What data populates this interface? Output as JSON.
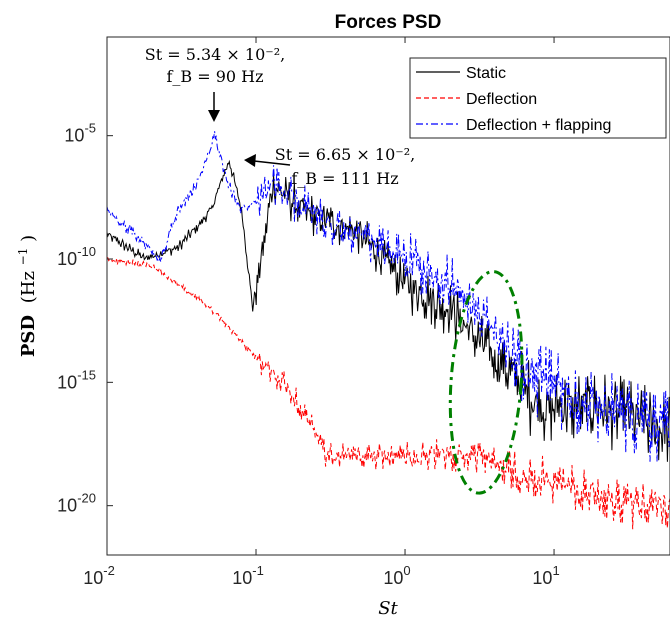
{
  "chart_data": {
    "type": "line",
    "title": "Forces PSD",
    "xlabel": "St",
    "ylabel": "PSD (Hz⁻¹)",
    "ylabel_main": "PSD",
    "ylabel_unit": "(Hz",
    "ylabel_unit_exp": "−1",
    "ylabel_unit_close": ")",
    "xscale": "log",
    "yscale": "log",
    "xlim": [
      0.01,
      60
    ],
    "ylim": [
      1e-22,
      0.1
    ],
    "grid": false,
    "legend_placement": "top-right",
    "x_ticks": [
      {
        "base": "10",
        "exp": "-2",
        "value": 0.01
      },
      {
        "base": "10",
        "exp": "-1",
        "value": 0.1
      },
      {
        "base": "10",
        "exp": "0",
        "value": 1
      },
      {
        "base": "10",
        "exp": "1",
        "value": 10
      }
    ],
    "y_ticks": [
      {
        "base": "10",
        "exp": "-5",
        "value": 1e-05
      },
      {
        "base": "10",
        "exp": "-10",
        "value": 1e-10
      },
      {
        "base": "10",
        "exp": "-15",
        "value": 1e-15
      },
      {
        "base": "10",
        "exp": "-20",
        "value": 1e-20
      }
    ],
    "series": [
      {
        "name": "Static",
        "color": "#000000",
        "style": "solid",
        "points": [
          [
            0.01,
            1e-09
          ],
          [
            0.018,
            1e-10
          ],
          [
            0.03,
            3e-10
          ],
          [
            0.04,
            2e-09
          ],
          [
            0.05,
            1e-08
          ],
          [
            0.066,
            1e-06
          ],
          [
            0.08,
            1e-08
          ],
          [
            0.095,
            1e-12
          ],
          [
            0.13,
            1e-07
          ],
          [
            0.2,
            1e-08
          ],
          [
            0.5,
            1e-09
          ],
          [
            1,
            1e-11
          ],
          [
            2,
            1e-12
          ],
          [
            4,
            1e-14
          ],
          [
            8,
            1e-16
          ],
          [
            20,
            1e-16
          ],
          [
            60,
            1e-17
          ]
        ]
      },
      {
        "name": "Deflection",
        "color": "#ff0000",
        "style": "dashed",
        "points": [
          [
            0.01,
            1e-10
          ],
          [
            0.02,
            5e-11
          ],
          [
            0.05,
            1e-12
          ],
          [
            0.1,
            1e-14
          ],
          [
            0.15,
            1e-15
          ],
          [
            0.2,
            1e-16
          ],
          [
            0.3,
            1e-18
          ],
          [
            1,
            1e-18
          ],
          [
            3,
            1e-18
          ],
          [
            5,
            3e-19
          ],
          [
            10,
            1e-19
          ],
          [
            30,
            1e-20
          ],
          [
            60,
            1e-20
          ]
        ]
      },
      {
        "name": "Deflection + flapping",
        "color": "#0000ff",
        "style": "dash-dot",
        "points": [
          [
            0.01,
            1e-08
          ],
          [
            0.023,
            1e-10
          ],
          [
            0.03,
            1e-08
          ],
          [
            0.04,
            1e-07
          ],
          [
            0.053,
            1e-05
          ],
          [
            0.065,
            1e-07
          ],
          [
            0.08,
            1e-08
          ],
          [
            0.13,
            1e-07
          ],
          [
            0.3,
            3e-09
          ],
          [
            1,
            1e-10
          ],
          [
            2,
            1e-11
          ],
          [
            4,
            1e-13
          ],
          [
            8,
            1e-15
          ],
          [
            20,
            1e-16
          ],
          [
            60,
            1e-17
          ]
        ]
      }
    ],
    "annotations": [
      {
        "line1": "St = 5.34 × 10⁻²,",
        "line2": "f_B = 90 Hz",
        "x": 0.053,
        "y": 1e-05
      },
      {
        "line1": "St = 6.65 × 10⁻²,",
        "line2": "f_B = 111 Hz",
        "x": 0.066,
        "y": 1e-06
      }
    ],
    "highlight_ellipse": {
      "color": "#008000",
      "style": "dash-dot",
      "x_center": 3.5,
      "y_center": 1e-15,
      "x_range": [
        2.2,
        6.5
      ],
      "y_range": [
        1e-19,
        1e-10
      ]
    }
  }
}
